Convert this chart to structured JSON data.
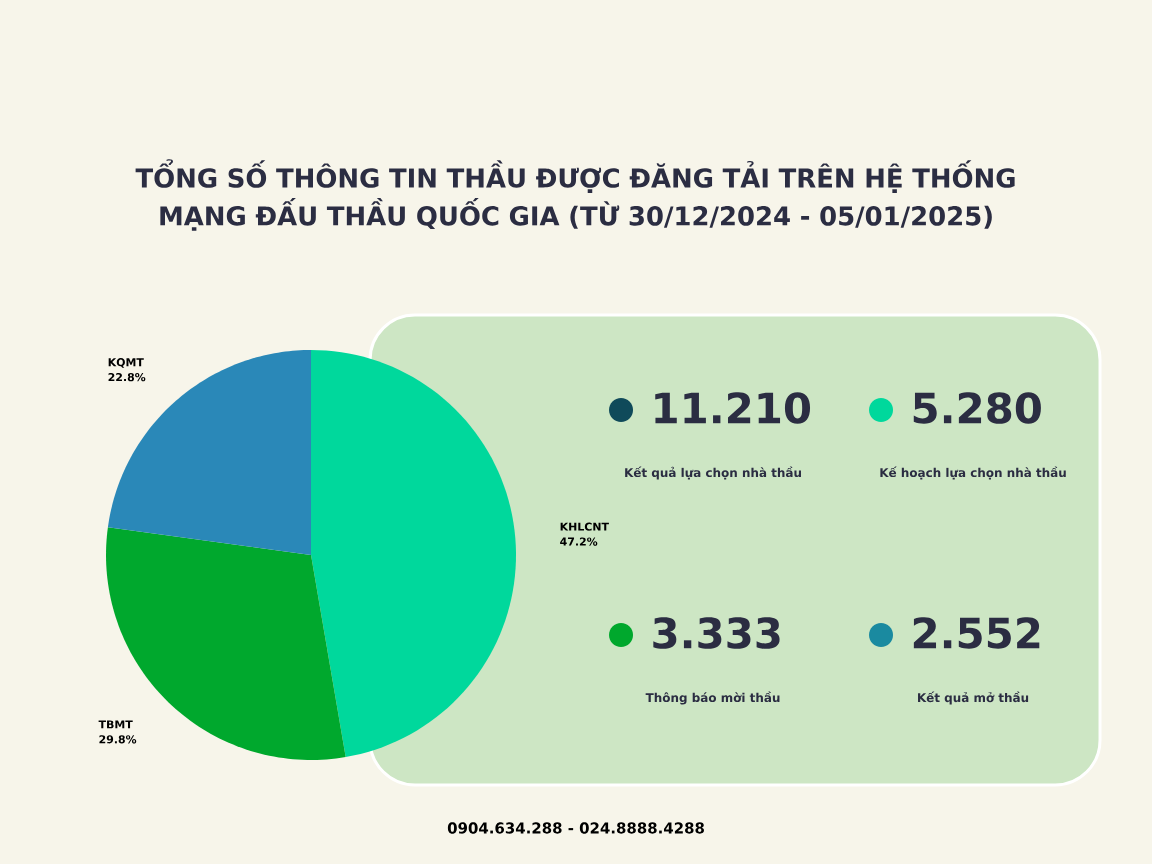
{
  "chart_data": [
    {
      "type": "pie",
      "title": "TỔNG SỐ THÔNG TIN THẦU ĐƯỢC ĐĂNG TẢI TRÊN HỆ THỐNG MẠNG ĐẤU THẦU QUỐC GIA (TỪ 30/12/2024 - 05/01/2025)",
      "categories": [
        "KHLCNT",
        "TBMT",
        "KQMT"
      ],
      "values": [
        47.2,
        29.8,
        22.8
      ],
      "value_labels": [
        "47.2%",
        "29.8%",
        "22.8%"
      ],
      "colors": [
        "#00d89c",
        "#00a82d",
        "#2a88b8"
      ],
      "annotations": [
        "0904.634.288 - 024.8888.4288"
      ]
    },
    {
      "type": "other",
      "categories": [
        "Kết quả lựa chọn nhà thầu",
        "Kế hoạch lựa chọn nhà thầu",
        "Thông báo mời thầu",
        "Kết quả mở thầu"
      ],
      "value_labels": [
        "11.210",
        "5.280",
        "3.333",
        "2.552"
      ],
      "colors": [
        "#0f4a5a",
        "#00d89c",
        "#00a82d",
        "#1a8aa0"
      ]
    }
  ]
}
